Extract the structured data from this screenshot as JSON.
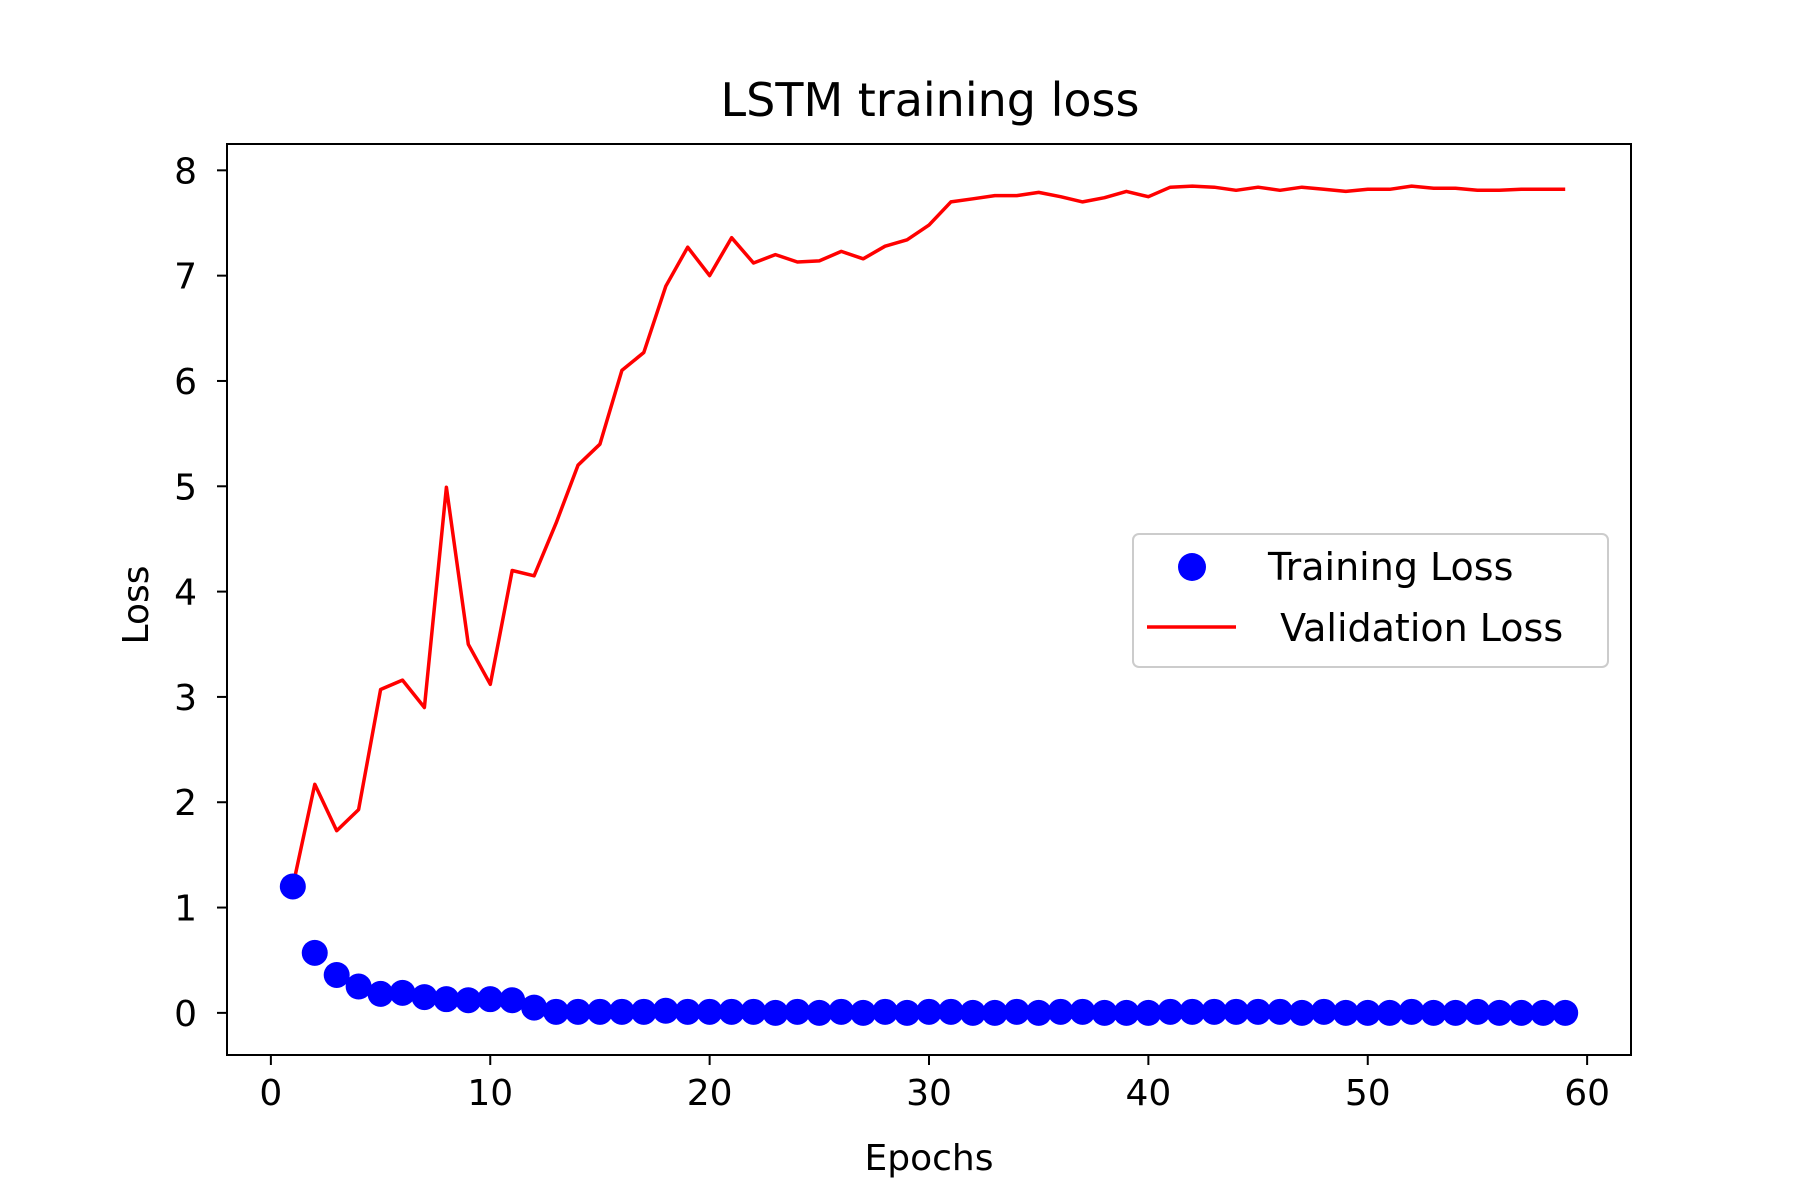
{
  "chart_data": {
    "type": "line",
    "title": "LSTM training loss",
    "xlabel": "Epochs",
    "ylabel": "Loss",
    "xlim": [
      -2,
      62
    ],
    "ylim": [
      -0.4,
      8.25
    ],
    "xticks": [
      0,
      10,
      20,
      30,
      40,
      50,
      60
    ],
    "yticks": [
      0,
      1,
      2,
      3,
      4,
      5,
      6,
      7,
      8
    ],
    "grid": false,
    "legend_position": "center-right",
    "series": [
      {
        "name": "Training Loss",
        "style": "markers",
        "color": "#0000ff",
        "x": [
          1,
          2,
          3,
          4,
          5,
          6,
          7,
          8,
          9,
          10,
          11,
          12,
          13,
          14,
          15,
          16,
          17,
          18,
          19,
          20,
          21,
          22,
          23,
          24,
          25,
          26,
          27,
          28,
          29,
          30,
          31,
          32,
          33,
          34,
          35,
          36,
          37,
          38,
          39,
          40,
          41,
          42,
          43,
          44,
          45,
          46,
          47,
          48,
          49,
          50,
          51,
          52,
          53,
          54,
          55,
          56,
          57,
          58,
          59
        ],
        "values": [
          1.2,
          0.57,
          0.36,
          0.25,
          0.18,
          0.19,
          0.15,
          0.13,
          0.12,
          0.13,
          0.12,
          0.05,
          0.01,
          0.01,
          0.01,
          0.01,
          0.01,
          0.02,
          0.01,
          0.01,
          0.01,
          0.01,
          0.0,
          0.01,
          0.0,
          0.01,
          0.0,
          0.01,
          0.0,
          0.01,
          0.01,
          0.0,
          0.0,
          0.01,
          0.0,
          0.01,
          0.01,
          0.0,
          0.0,
          0.0,
          0.01,
          0.01,
          0.01,
          0.01,
          0.01,
          0.01,
          0.0,
          0.01,
          0.0,
          0.0,
          0.0,
          0.01,
          0.0,
          0.0,
          0.01,
          0.0,
          0.0,
          0.0,
          0.0
        ]
      },
      {
        "name": " Validation Loss",
        "style": "line",
        "color": "#ff0000",
        "x": [
          1,
          2,
          3,
          4,
          5,
          6,
          7,
          8,
          9,
          10,
          11,
          12,
          13,
          14,
          15,
          16,
          17,
          18,
          19,
          20,
          21,
          22,
          23,
          24,
          25,
          26,
          27,
          28,
          29,
          30,
          31,
          32,
          33,
          34,
          35,
          36,
          37,
          38,
          39,
          40,
          41,
          42,
          43,
          44,
          45,
          46,
          47,
          48,
          49,
          50,
          51,
          52,
          53,
          54,
          55,
          56,
          57,
          58,
          59
        ],
        "values": [
          1.2,
          2.17,
          1.73,
          1.93,
          3.07,
          3.16,
          2.9,
          4.99,
          3.5,
          3.12,
          4.2,
          4.15,
          4.65,
          5.2,
          5.4,
          6.1,
          6.27,
          6.9,
          7.27,
          7.0,
          7.36,
          7.12,
          7.2,
          7.13,
          7.14,
          7.23,
          7.16,
          7.28,
          7.34,
          7.48,
          7.7,
          7.73,
          7.76,
          7.76,
          7.79,
          7.75,
          7.7,
          7.74,
          7.8,
          7.75,
          7.84,
          7.85,
          7.84,
          7.81,
          7.84,
          7.81,
          7.84,
          7.82,
          7.8,
          7.82,
          7.82,
          7.85,
          7.83,
          7.83,
          7.81,
          7.81,
          7.82,
          7.82,
          7.82
        ]
      }
    ]
  }
}
